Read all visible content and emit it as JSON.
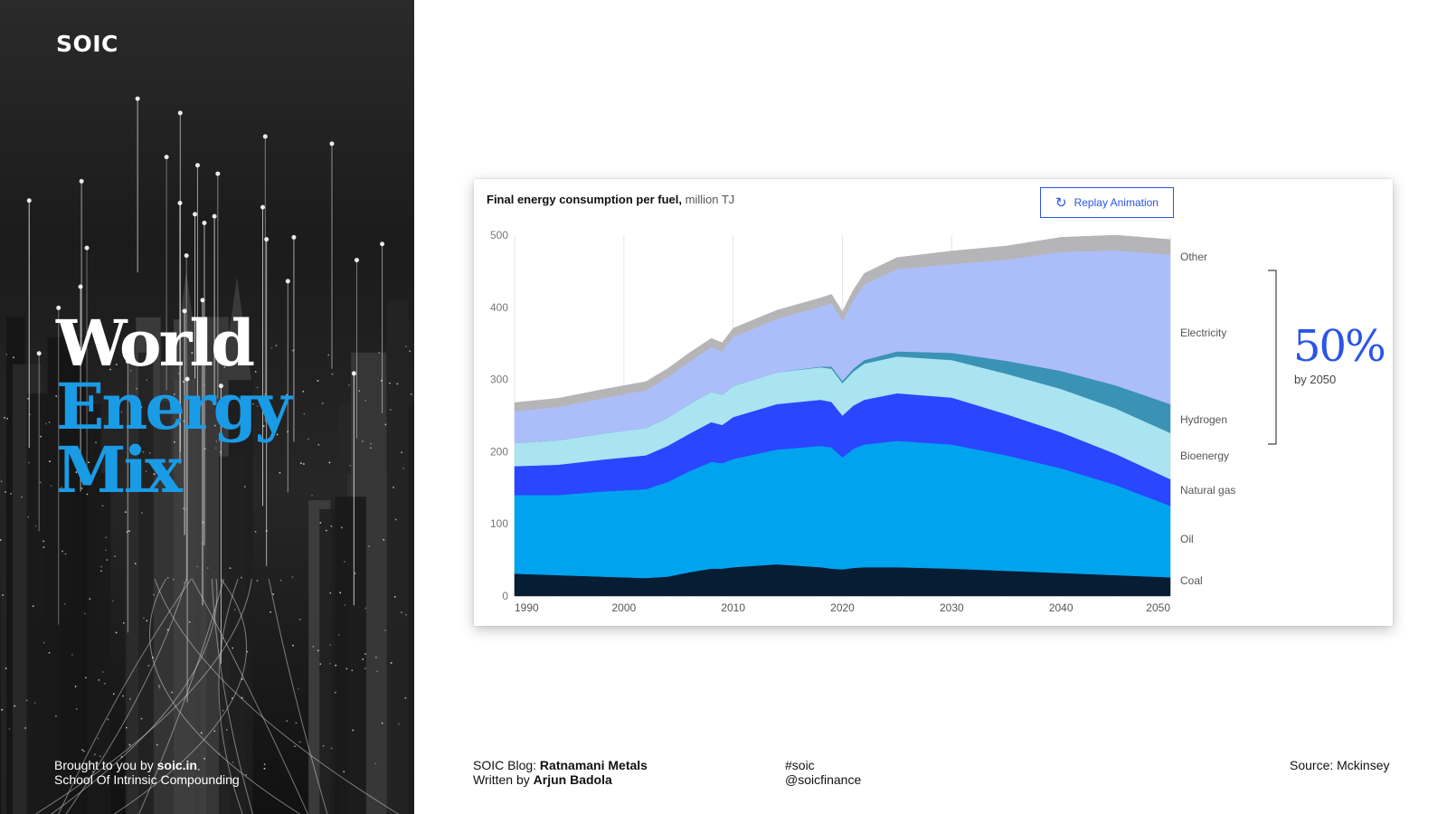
{
  "brand": "SOIC",
  "headline": {
    "line1": "World",
    "line2": "Energy",
    "line3": "Mix"
  },
  "credit": {
    "prefix": "Brought to you by ",
    "site": "soic.in",
    "org": "School Of Intrinsic Compounding"
  },
  "footer": {
    "blog_prefix": "SOIC Blog: ",
    "blog_name": "Ratnamani Metals",
    "author_prefix": "Written by ",
    "author": "Arjun Badola",
    "tag1": "#soic",
    "tag2": "@soicfinance",
    "source": "Source: Mckinsey"
  },
  "replay_button": {
    "label": "Replay Animation",
    "icon": "refresh-icon"
  },
  "callout": {
    "value": "50%",
    "caption": "by 2050"
  },
  "colors": {
    "accent": "#2a55e5",
    "headline_blue": "#1a9be6"
  },
  "chart_data": {
    "type": "area",
    "title": "Final energy consumption per fuel,",
    "title_unit": "million TJ",
    "stacked": true,
    "ylim": [
      0,
      500
    ],
    "y_ticks": [
      0,
      100,
      200,
      300,
      400,
      500
    ],
    "xlim": [
      1990,
      2050
    ],
    "x_ticks": [
      1990,
      2000,
      2010,
      2020,
      2030,
      2040,
      2050
    ],
    "grid": "vertical",
    "legend": "right-edge labels",
    "x": [
      1990,
      1994,
      1998,
      2002,
      2004,
      2006,
      2008,
      2009,
      2010,
      2014,
      2018,
      2019,
      2020,
      2021,
      2022,
      2025,
      2030,
      2035,
      2040,
      2045,
      2050
    ],
    "series": [
      {
        "name": "Coal",
        "color": "#071d33",
        "values": [
          31,
          29,
          27,
          25,
          27,
          33,
          38,
          38,
          40,
          44,
          40,
          38,
          37,
          39,
          40,
          40,
          38,
          35,
          32,
          29,
          26
        ]
      },
      {
        "name": "Oil",
        "color": "#00a3ee",
        "values": [
          109,
          111,
          118,
          123,
          131,
          140,
          148,
          146,
          150,
          159,
          168,
          168,
          155,
          165,
          170,
          175,
          172,
          160,
          145,
          125,
          99
        ]
      },
      {
        "name": "Natural gas",
        "color": "#2a46ff",
        "values": [
          40,
          42,
          44,
          47,
          50,
          52,
          55,
          53,
          58,
          63,
          64,
          63,
          58,
          60,
          62,
          66,
          65,
          57,
          50,
          43,
          37
        ]
      },
      {
        "name": "Bioenergy",
        "color": "#a9e4f0",
        "values": [
          32,
          34,
          36,
          38,
          39,
          41,
          42,
          42,
          43,
          44,
          45,
          46,
          45,
          47,
          50,
          51,
          52,
          56,
          60,
          63,
          64
        ]
      },
      {
        "name": "Hydrogen",
        "color": "#3a93b4",
        "values": [
          0,
          0,
          0,
          0,
          0,
          0,
          0,
          0,
          0,
          0,
          1,
          3,
          3,
          4,
          5,
          7,
          10,
          18,
          25,
          32,
          40
        ]
      },
      {
        "name": "Electricity",
        "color": "#abbefa",
        "values": [
          44,
          46,
          49,
          52,
          56,
          59,
          62,
          60,
          68,
          74,
          83,
          88,
          83,
          95,
          105,
          114,
          123,
          140,
          165,
          187,
          207
        ]
      },
      {
        "name": "Other",
        "color": "#b5b5b7",
        "values": [
          12,
          12,
          12,
          12,
          12,
          12,
          12,
          12,
          12,
          12,
          12,
          12,
          13,
          14,
          15,
          16,
          18,
          19,
          20,
          21,
          21
        ]
      }
    ],
    "annotation": {
      "value": "50%",
      "caption": "by 2050",
      "spans": [
        "Electricity",
        "Hydrogen"
      ]
    }
  }
}
